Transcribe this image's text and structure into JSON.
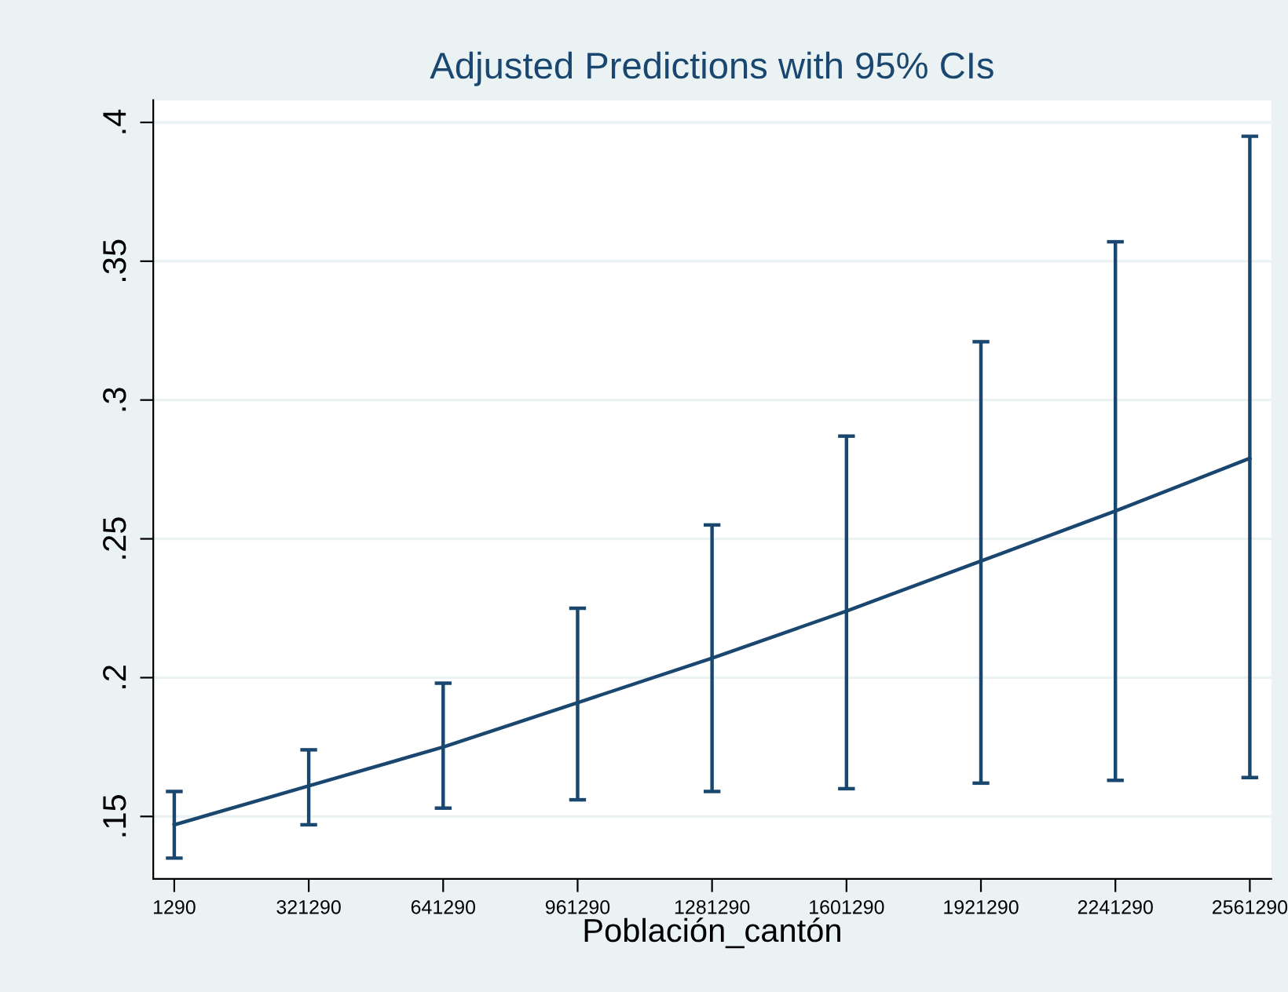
{
  "chart_data": {
    "type": "line",
    "title": "Adjusted Predictions with 95% CIs",
    "xlabel": "Población_cantón",
    "x": [
      1290,
      321290,
      641290,
      961290,
      1281290,
      1601290,
      1921290,
      2241290,
      2561290
    ],
    "series": [
      {
        "color": "#1a476f",
        "values": [
          0.147,
          0.161,
          0.175,
          0.191,
          0.207,
          0.224,
          0.242,
          0.26,
          0.279
        ],
        "errors": [
          [
            0.135,
            0.159
          ],
          [
            0.147,
            0.174
          ],
          [
            0.153,
            0.198
          ],
          [
            0.156,
            0.225
          ],
          [
            0.159,
            0.255
          ],
          [
            0.16,
            0.287
          ],
          [
            0.162,
            0.321
          ],
          [
            0.163,
            0.357
          ],
          [
            0.164,
            0.395
          ]
        ]
      }
    ],
    "xlim": [
      -48710,
      2612290
    ],
    "xticks": [
      1290,
      321290,
      641290,
      961290,
      1281290,
      1601290,
      1921290,
      2241290,
      2561290
    ],
    "ylim": [
      0.1275,
      0.408
    ],
    "yticks": [
      {
        "value": 0.15,
        "label": ".15"
      },
      {
        "value": 0.2,
        "label": ".2"
      },
      {
        "value": 0.25,
        "label": ".25"
      },
      {
        "value": 0.3,
        "label": ".3"
      },
      {
        "value": 0.35,
        "label": ".35"
      },
      {
        "value": 0.4,
        "label": ".4"
      }
    ],
    "grid": "y",
    "marker": "none",
    "line_style": "solid"
  }
}
